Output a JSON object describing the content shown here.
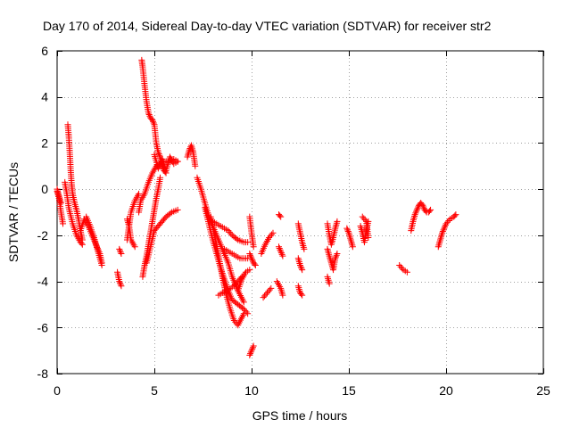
{
  "chart_data": {
    "type": "scatter",
    "title": "Day 170 of 2014, Sidereal Day-to-day VTEC variation (SDTVAR) for receiver str2",
    "xlabel": "GPS time / hours",
    "ylabel": "SDTVAR / TECUs",
    "xlim": [
      0,
      25
    ],
    "ylim": [
      -8,
      6
    ],
    "xticks": [
      0,
      5,
      10,
      15,
      20,
      25
    ],
    "yticks": [
      -8,
      -6,
      -4,
      -2,
      0,
      2,
      4,
      6
    ],
    "grid": true,
    "marker": "+",
    "marker_color": "#ff0000",
    "segments": [
      {
        "name": "arc-01",
        "x": [
          0.0,
          0.1,
          0.2,
          0.3
        ],
        "y": [
          -0.1,
          -0.4,
          -1.0,
          -1.5
        ]
      },
      {
        "name": "arc-02",
        "x": [
          0.0,
          0.1,
          0.2
        ],
        "y": [
          0.0,
          -0.3,
          -0.6
        ]
      },
      {
        "name": "arc-03",
        "x": [
          0.4,
          0.5,
          0.6,
          0.8,
          1.0,
          1.2,
          1.3
        ],
        "y": [
          0.3,
          -0.2,
          -0.8,
          -1.5,
          -2.0,
          -2.3,
          -2.4
        ]
      },
      {
        "name": "arc-04",
        "x": [
          0.55,
          0.6,
          0.65,
          0.7,
          0.75,
          0.8,
          0.9,
          1.0,
          1.1,
          1.2,
          1.3
        ],
        "y": [
          2.8,
          2.3,
          1.6,
          0.8,
          0.2,
          -0.2,
          -0.6,
          -0.9,
          -1.3,
          -1.8,
          -2.2
        ]
      },
      {
        "name": "arc-05",
        "x": [
          1.2,
          1.4,
          1.6,
          1.8,
          2.0,
          2.2,
          2.3
        ],
        "y": [
          -1.8,
          -1.3,
          -1.6,
          -2.0,
          -2.4,
          -2.8,
          -3.2
        ]
      },
      {
        "name": "arc-06",
        "x": [
          1.5,
          1.7,
          1.9,
          2.1,
          2.3
        ],
        "y": [
          -1.2,
          -1.6,
          -2.1,
          -2.7,
          -3.3
        ]
      },
      {
        "name": "arc-07",
        "x": [
          3.1,
          3.2,
          3.3
        ],
        "y": [
          -3.6,
          -4.0,
          -4.2
        ]
      },
      {
        "name": "arc-08",
        "x": [
          3.2,
          3.3
        ],
        "y": [
          -2.6,
          -2.8
        ]
      },
      {
        "name": "arc-09",
        "x": [
          3.6,
          3.7,
          3.8,
          4.0,
          4.2
        ],
        "y": [
          -2.2,
          -1.6,
          -1.0,
          -0.5,
          -0.2
        ]
      },
      {
        "name": "arc-10",
        "x": [
          3.6,
          3.7,
          3.8,
          4.0
        ],
        "y": [
          -1.3,
          -1.6,
          -2.2,
          -2.5
        ]
      },
      {
        "name": "arc-11",
        "x": [
          4.2,
          4.3,
          4.5,
          4.7,
          4.9,
          5.1,
          5.4,
          5.7,
          6.0,
          6.2
        ],
        "y": [
          -1.0,
          -0.5,
          -0.2,
          0.3,
          0.7,
          1.0,
          1.2,
          1.2,
          1.3,
          1.2
        ]
      },
      {
        "name": "arc-12",
        "x": [
          4.35,
          4.4,
          4.5,
          4.6,
          4.7,
          4.8,
          4.9,
          5.0,
          5.1,
          5.2,
          5.3,
          5.4,
          5.5,
          5.6
        ],
        "y": [
          5.6,
          5.3,
          4.5,
          3.8,
          3.3,
          3.1,
          3.0,
          2.8,
          2.0,
          1.6,
          1.4,
          1.0,
          0.8,
          0.7
        ]
      },
      {
        "name": "arc-13",
        "x": [
          4.4,
          4.5,
          4.6,
          4.7,
          4.8,
          4.9,
          5.0,
          5.1,
          5.2,
          5.3
        ],
        "y": [
          -3.8,
          -3.3,
          -2.9,
          -2.4,
          -1.9,
          -1.4,
          -0.9,
          -0.4,
          0.0,
          0.5
        ]
      },
      {
        "name": "arc-14",
        "x": [
          4.6,
          4.8,
          5.0,
          5.3,
          5.6,
          5.9,
          6.2
        ],
        "y": [
          -3.2,
          -2.5,
          -1.8,
          -1.5,
          -1.2,
          -1.0,
          -0.9
        ]
      },
      {
        "name": "arc-15",
        "x": [
          5.0,
          5.2,
          5.4,
          5.6,
          5.8,
          6.0,
          6.2
        ],
        "y": [
          1.5,
          0.9,
          1.3,
          0.8,
          1.4,
          1.1,
          1.2
        ]
      },
      {
        "name": "arc-16",
        "x": [
          6.7,
          6.8,
          6.9,
          7.0,
          7.1
        ],
        "y": [
          1.4,
          1.7,
          1.9,
          1.6,
          1.0
        ]
      },
      {
        "name": "arc-17",
        "x": [
          7.2,
          7.4,
          7.6,
          7.8,
          8.0,
          8.2,
          8.4,
          8.6,
          8.8,
          9.0,
          9.3,
          9.6
        ],
        "y": [
          0.5,
          0.0,
          -0.6,
          -1.2,
          -1.6,
          -2.0,
          -2.4,
          -2.8,
          -3.2,
          -3.8,
          -4.4,
          -4.9
        ]
      },
      {
        "name": "arc-18",
        "x": [
          7.6,
          7.8,
          8.0,
          8.2,
          8.4,
          8.6,
          8.8,
          9.0,
          9.3,
          9.6,
          9.8
        ],
        "y": [
          -0.8,
          -1.5,
          -2.2,
          -2.8,
          -3.4,
          -3.9,
          -4.4,
          -4.8,
          -5.0,
          -5.2,
          -5.4
        ]
      },
      {
        "name": "arc-19",
        "x": [
          7.9,
          8.1,
          8.3,
          8.5,
          8.7,
          8.9,
          9.1,
          9.3,
          9.6
        ],
        "y": [
          -1.2,
          -2.0,
          -2.9,
          -3.8,
          -4.6,
          -5.2,
          -5.7,
          -5.9,
          -5.4
        ]
      },
      {
        "name": "arc-20",
        "x": [
          8.0,
          8.2,
          8.4,
          8.6,
          8.8,
          9.0,
          9.3,
          9.6,
          9.8
        ],
        "y": [
          -1.4,
          -1.5,
          -1.6,
          -1.7,
          -1.8,
          -2.0,
          -2.2,
          -2.3,
          -2.3
        ]
      },
      {
        "name": "arc-21",
        "x": [
          8.3,
          8.5,
          8.7,
          8.9,
          9.1,
          9.3,
          9.5
        ],
        "y": [
          -4.6,
          -4.5,
          -4.4,
          -4.3,
          -4.2,
          -4.0,
          -3.8
        ]
      },
      {
        "name": "arc-22",
        "x": [
          8.6,
          8.8,
          9.0,
          9.2,
          9.4,
          9.6,
          9.8
        ],
        "y": [
          -2.6,
          -2.7,
          -2.8,
          -2.9,
          -3.0,
          -3.0,
          -3.0
        ]
      },
      {
        "name": "arc-23",
        "x": [
          9.3,
          9.5,
          9.7,
          9.9
        ],
        "y": [
          -4.4,
          -3.9,
          -3.6,
          -3.5
        ]
      },
      {
        "name": "arc-24",
        "x": [
          9.9,
          10.0,
          10.1
        ],
        "y": [
          -7.2,
          -7.0,
          -6.8
        ]
      },
      {
        "name": "arc-25",
        "x": [
          9.9,
          10.0,
          10.1
        ],
        "y": [
          -1.2,
          -1.9,
          -2.5
        ]
      },
      {
        "name": "arc-26",
        "x": [
          9.9,
          10.0,
          10.1,
          10.2
        ],
        "y": [
          -2.8,
          -3.0,
          -3.2,
          -3.3
        ]
      },
      {
        "name": "arc-27",
        "x": [
          10.5,
          10.7,
          10.9,
          11.1
        ],
        "y": [
          -2.8,
          -2.4,
          -2.1,
          -1.9
        ]
      },
      {
        "name": "arc-28",
        "x": [
          10.6,
          10.8,
          11.0
        ],
        "y": [
          -4.7,
          -4.5,
          -4.3
        ]
      },
      {
        "name": "arc-29",
        "x": [
          11.4,
          11.5
        ],
        "y": [
          -1.1,
          -1.2
        ]
      },
      {
        "name": "arc-30",
        "x": [
          11.3,
          11.5,
          11.6
        ],
        "y": [
          -4.0,
          -4.3,
          -4.6
        ]
      },
      {
        "name": "arc-31",
        "x": [
          11.4,
          11.5,
          11.6
        ],
        "y": [
          -2.5,
          -2.7,
          -2.9
        ]
      },
      {
        "name": "arc-32",
        "x": [
          12.4,
          12.5,
          12.6,
          12.7
        ],
        "y": [
          -1.5,
          -1.9,
          -2.3,
          -2.6
        ]
      },
      {
        "name": "arc-33",
        "x": [
          12.4,
          12.5,
          12.6
        ],
        "y": [
          -3.0,
          -3.3,
          -3.5
        ]
      },
      {
        "name": "arc-34",
        "x": [
          12.4,
          12.5,
          12.6
        ],
        "y": [
          -4.2,
          -4.5,
          -4.6
        ]
      },
      {
        "name": "arc-35",
        "x": [
          13.9,
          14.0,
          14.1,
          14.2,
          14.3,
          14.4
        ],
        "y": [
          -1.5,
          -2.0,
          -2.4,
          -2.1,
          -1.7,
          -1.4
        ]
      },
      {
        "name": "arc-36",
        "x": [
          13.9,
          14.0,
          14.1,
          14.2,
          14.3,
          14.4
        ],
        "y": [
          -2.6,
          -2.9,
          -3.2,
          -3.5,
          -3.0,
          -2.8
        ]
      },
      {
        "name": "arc-37",
        "x": [
          13.9,
          14.0
        ],
        "y": [
          -3.8,
          -4.1
        ]
      },
      {
        "name": "arc-38",
        "x": [
          14.9,
          15.0,
          15.1,
          15.2
        ],
        "y": [
          -1.7,
          -1.9,
          -2.2,
          -2.5
        ]
      },
      {
        "name": "arc-39",
        "x": [
          15.6,
          15.7,
          15.8,
          15.9,
          16.0
        ],
        "y": [
          -1.6,
          -1.9,
          -2.3,
          -1.8,
          -1.4
        ]
      },
      {
        "name": "arc-40",
        "x": [
          15.7,
          15.9,
          16.0
        ],
        "y": [
          -1.2,
          -1.4,
          -2.1
        ]
      },
      {
        "name": "arc-41",
        "x": [
          17.6,
          17.8,
          18.0
        ],
        "y": [
          -3.3,
          -3.5,
          -3.6
        ]
      },
      {
        "name": "arc-42",
        "x": [
          18.2,
          18.3,
          18.4,
          18.5,
          18.6,
          18.7,
          18.8,
          18.9,
          19.0,
          19.1,
          19.2
        ],
        "y": [
          -1.8,
          -1.4,
          -1.1,
          -0.9,
          -0.7,
          -0.6,
          -0.7,
          -0.9,
          -1.0,
          -1.0,
          -0.9
        ]
      },
      {
        "name": "arc-43",
        "x": [
          19.6,
          19.7,
          19.8,
          19.9,
          20.0,
          20.2,
          20.4,
          20.5
        ],
        "y": [
          -2.5,
          -2.2,
          -1.9,
          -1.7,
          -1.5,
          -1.3,
          -1.2,
          -1.1
        ]
      }
    ]
  }
}
